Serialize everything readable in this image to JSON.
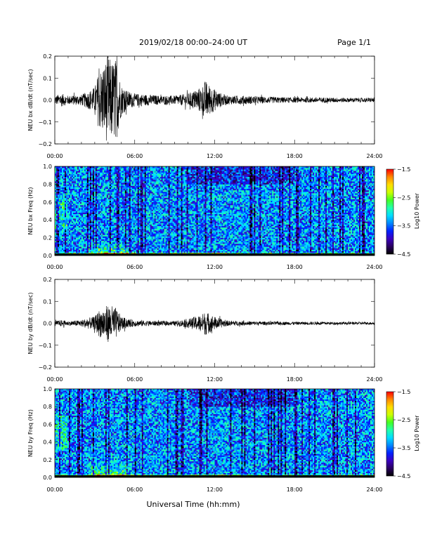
{
  "header": {
    "title": "2019/02/18  00:00–24:00 UT",
    "page": "Page 1/1"
  },
  "footer": {
    "xlabel": "Universal Time (hh:mm)"
  },
  "colors": {
    "trace": "#000000",
    "background": "#ffffff",
    "colormap": [
      "#000000",
      "#2a0060",
      "#3b00c0",
      "#0022ff",
      "#0088ff",
      "#00ddff",
      "#22ffaa",
      "#44ff22",
      "#ccff00",
      "#ffdd00",
      "#ff8800",
      "#ff0000"
    ]
  },
  "chart_data": [
    {
      "type": "line",
      "ylabel": "NEU bx dB/dt (nT/sec)",
      "ylim": [
        -0.2,
        0.2
      ],
      "xlim": [
        0,
        24
      ],
      "yticks": [
        "0.2",
        "0.1",
        "0.0",
        "−0.1",
        "−0.2"
      ],
      "xticks": [
        "00:00",
        "06:00",
        "12:00",
        "18:00",
        "24:00"
      ],
      "envelope": {
        "x_hours": [
          0,
          0.5,
          1,
          2,
          2.5,
          3,
          3.3,
          3.6,
          4,
          4.3,
          4.6,
          5,
          5.5,
          6,
          7,
          8,
          9,
          9.5,
          10,
          10.5,
          11,
          11.3,
          11.6,
          12,
          12.5,
          13,
          14,
          16,
          18,
          20,
          22,
          24
        ],
        "amplitude": [
          0.02,
          0.03,
          0.02,
          0.025,
          0.04,
          0.06,
          0.13,
          0.16,
          0.2,
          0.18,
          0.19,
          0.07,
          0.04,
          0.03,
          0.025,
          0.02,
          0.02,
          0.025,
          0.03,
          0.045,
          0.06,
          0.09,
          0.07,
          0.05,
          0.03,
          0.02,
          0.02,
          0.015,
          0.012,
          0.012,
          0.01,
          0.01
        ]
      }
    },
    {
      "type": "heatmap",
      "ylabel": "NEU bx Freq (Hz)",
      "ylim": [
        0.0,
        1.0
      ],
      "xlim": [
        0,
        24
      ],
      "yticks": [
        "1.0",
        "0.8",
        "0.6",
        "0.4",
        "0.2",
        "0.0"
      ],
      "xticks": [
        "00:00",
        "06:00",
        "12:00",
        "18:00",
        "24:00"
      ],
      "colorbar": {
        "label": "Log10 Power",
        "ticks": [
          "−1.5",
          "−2.5",
          "−3.5",
          "−4.5"
        ],
        "range": [
          -4.5,
          -1.5
        ]
      }
    },
    {
      "type": "line",
      "ylabel": "NEU by dB/dt (nT/sec)",
      "ylim": [
        -0.2,
        0.2
      ],
      "xlim": [
        0,
        24
      ],
      "yticks": [
        "0.2",
        "0.1",
        "0.0",
        "−0.1",
        "−0.2"
      ],
      "xticks": [
        "00:00",
        "06:00",
        "12:00",
        "18:00",
        "24:00"
      ],
      "envelope": {
        "x_hours": [
          0,
          0.5,
          1,
          2,
          2.5,
          3,
          3.3,
          3.6,
          4,
          4.3,
          4.6,
          5,
          5.5,
          6,
          7,
          8,
          9,
          9.5,
          10,
          10.5,
          11,
          11.3,
          11.6,
          12,
          12.5,
          13,
          14,
          16,
          18,
          20,
          22,
          24
        ],
        "amplitude": [
          0.01,
          0.015,
          0.01,
          0.015,
          0.025,
          0.03,
          0.06,
          0.07,
          0.085,
          0.08,
          0.07,
          0.03,
          0.02,
          0.015,
          0.012,
          0.01,
          0.01,
          0.015,
          0.02,
          0.03,
          0.04,
          0.055,
          0.045,
          0.03,
          0.02,
          0.012,
          0.01,
          0.008,
          0.007,
          0.007,
          0.006,
          0.006
        ]
      }
    },
    {
      "type": "heatmap",
      "ylabel": "NEU by Freq (Hz)",
      "ylim": [
        0.0,
        1.0
      ],
      "xlim": [
        0,
        24
      ],
      "yticks": [
        "1.0",
        "0.8",
        "0.6",
        "0.4",
        "0.2",
        "0.0"
      ],
      "xticks": [
        "00:00",
        "06:00",
        "12:00",
        "18:00",
        "24:00"
      ],
      "colorbar": {
        "label": "Log10 Power",
        "ticks": [
          "−1.5",
          "−2.5",
          "−3.5",
          "−4.5"
        ],
        "range": [
          -4.5,
          -1.5
        ]
      }
    }
  ]
}
